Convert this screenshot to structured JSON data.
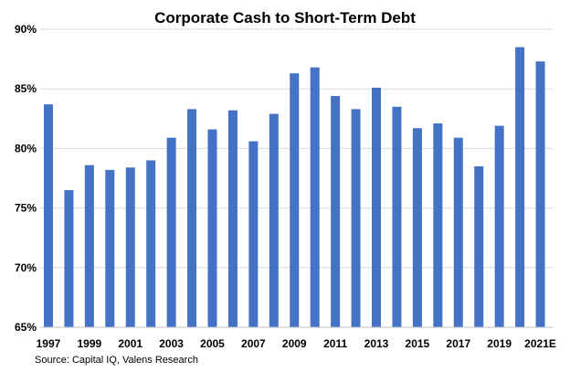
{
  "chart_data": {
    "type": "bar",
    "title": "Corporate Cash to Short-Term Debt",
    "xlabel": "",
    "ylabel": "",
    "ylim": [
      65,
      90
    ],
    "yticks": [
      "65%",
      "70%",
      "75%",
      "80%",
      "85%",
      "90%"
    ],
    "ytick_values": [
      65,
      70,
      75,
      80,
      85,
      90
    ],
    "categories": [
      "1997",
      "1998",
      "1999",
      "2000",
      "2001",
      "2002",
      "2003",
      "2004",
      "2005",
      "2006",
      "2007",
      "2008",
      "2009",
      "2010",
      "2011",
      "2012",
      "2013",
      "2014",
      "2015",
      "2016",
      "2017",
      "2018",
      "2019",
      "2020",
      "2021E"
    ],
    "xtick_labels": [
      "1997",
      "1999",
      "2001",
      "2003",
      "2005",
      "2007",
      "2009",
      "2011",
      "2013",
      "2015",
      "2017",
      "2019",
      "2021E"
    ],
    "values": [
      83.7,
      76.5,
      78.6,
      78.2,
      78.4,
      79.0,
      80.9,
      83.3,
      81.6,
      83.2,
      80.6,
      82.9,
      86.3,
      86.8,
      84.4,
      83.3,
      85.1,
      83.5,
      81.7,
      82.1,
      80.9,
      78.5,
      81.9,
      88.5,
      87.3
    ],
    "grid": true,
    "legend": "none",
    "bar_color": "#4472C4",
    "grid_color": "#d9d9d9"
  },
  "source": "Source: Capital IQ, Valens Research"
}
